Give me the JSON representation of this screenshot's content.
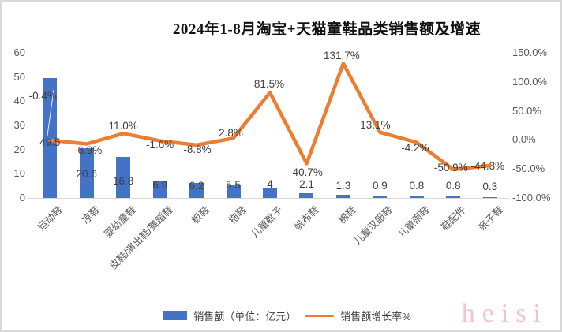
{
  "chart_data": {
    "type": "bar+line combo",
    "title": "2024年1-8月淘宝+天猫童鞋品类销售额及增速",
    "categories": [
      "运动鞋",
      "凉鞋",
      "婴幼童鞋",
      "皮鞋/演出鞋/舞蹈鞋",
      "板鞋",
      "拖鞋",
      "儿童靴子",
      "帆布鞋",
      "棉鞋",
      "儿童汉服鞋",
      "儿童雨鞋",
      "鞋配件",
      "亲子鞋"
    ],
    "series": [
      {
        "name": "销售额（单位：亿元）",
        "type": "bar",
        "color": "#4472C4",
        "values": [
          49.5,
          20.6,
          16.8,
          6.9,
          6.2,
          5.5,
          4,
          2.1,
          1.3,
          0.9,
          0.8,
          0.8,
          0.3
        ],
        "labels": [
          "49.5",
          "20.6",
          "16.8",
          "6.9",
          "6.2",
          "5.5",
          "4",
          "2.1",
          "1.3",
          "0.9",
          "0.8",
          "0.8",
          "0.3"
        ]
      },
      {
        "name": "销售额增长率%",
        "type": "line",
        "color": "#ED7D31",
        "values": [
          -0.4,
          -6.9,
          11.0,
          -1.6,
          -8.8,
          2.8,
          81.5,
          -40.7,
          131.7,
          13.1,
          -4.2,
          -50.9,
          -44.3
        ],
        "labels": [
          "-0.4%",
          "-6.9%",
          "11.0%",
          "-1.6%",
          "-8.8%",
          "2.8%",
          "81.5%",
          "-40.7%",
          "131.7%",
          "13.1%",
          "-4.2%",
          "-50.9%",
          "-44.3%"
        ]
      }
    ],
    "left_axis": {
      "min": 0,
      "max": 60,
      "ticks": [
        0,
        10,
        20,
        30,
        40,
        50,
        60
      ]
    },
    "right_axis": {
      "min": -100,
      "max": 150,
      "ticks": [
        "150.0%",
        "100.0%",
        "50.0%",
        "0.0%",
        "-50.0%",
        "-100.0%"
      ]
    },
    "grid": false,
    "legend_position": "bottom"
  },
  "watermark": {
    "text": "heisi"
  }
}
